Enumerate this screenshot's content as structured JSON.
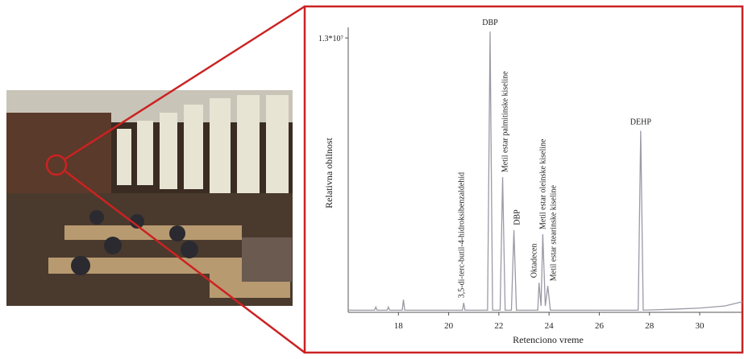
{
  "chart_data": {
    "type": "line",
    "x_label": "Retenciono vreme",
    "y_label": "Relativna obilnost",
    "xlim": [
      16,
      31.7
    ],
    "xticks": [
      18,
      20,
      22,
      24,
      26,
      28,
      30
    ],
    "ylim": [
      0,
      13500000
    ],
    "yticks": [
      {
        "value": 13000000,
        "label": "1.3*10⁷"
      }
    ],
    "series": [
      {
        "color": "#9a9aa6",
        "x": [
          16,
          17.05,
          17.1,
          17.15,
          17.55,
          17.6,
          17.65,
          18.15,
          18.2,
          18.25,
          20.55,
          20.6,
          20.65,
          21.55,
          21.65,
          21.75,
          22.05,
          22.15,
          22.25,
          22.5,
          22.6,
          22.7,
          23.55,
          23.6,
          23.68,
          23.75,
          23.85,
          23.95,
          24.05,
          27.55,
          27.65,
          27.75,
          29,
          30,
          31,
          31.7
        ],
        "values": [
          100000,
          100000,
          250000,
          100000,
          100000,
          250000,
          100000,
          100000,
          600000,
          100000,
          100000,
          450000,
          100000,
          100000,
          13300000,
          100000,
          100000,
          6400000,
          100000,
          100000,
          3900000,
          100000,
          100000,
          1400000,
          300000,
          3700000,
          300000,
          1250000,
          100000,
          100000,
          8600000,
          100000,
          150000,
          200000,
          300000,
          500000
        ]
      }
    ],
    "annotations": [
      {
        "text": "3,5-di-terc-butil-4-hidroksibenzaldehid",
        "x": 20.6,
        "y": 450000,
        "orientation": "vertical"
      },
      {
        "text": "DBP",
        "x": 21.65,
        "y": 13300000,
        "orientation": "horizontal"
      },
      {
        "text": "Metil estar palmitinske kiseline",
        "x": 22.15,
        "y": 6400000,
        "orientation": "vertical"
      },
      {
        "text": "DBP",
        "x": 22.6,
        "y": 3900000,
        "orientation": "vertical"
      },
      {
        "text": "Oktadecen",
        "x": 23.6,
        "y": 1400000,
        "orientation": "vertical"
      },
      {
        "text": "Metil estar oleinske kiseline",
        "x": 23.75,
        "y": 3700000,
        "orientation": "vertical"
      },
      {
        "text": "Metil estar stearinske kiseline",
        "x": 23.95,
        "y": 1250000,
        "orientation": "vertical"
      },
      {
        "text": "DEHP",
        "x": 27.65,
        "y": 8600000,
        "orientation": "horizontal"
      }
    ]
  }
}
